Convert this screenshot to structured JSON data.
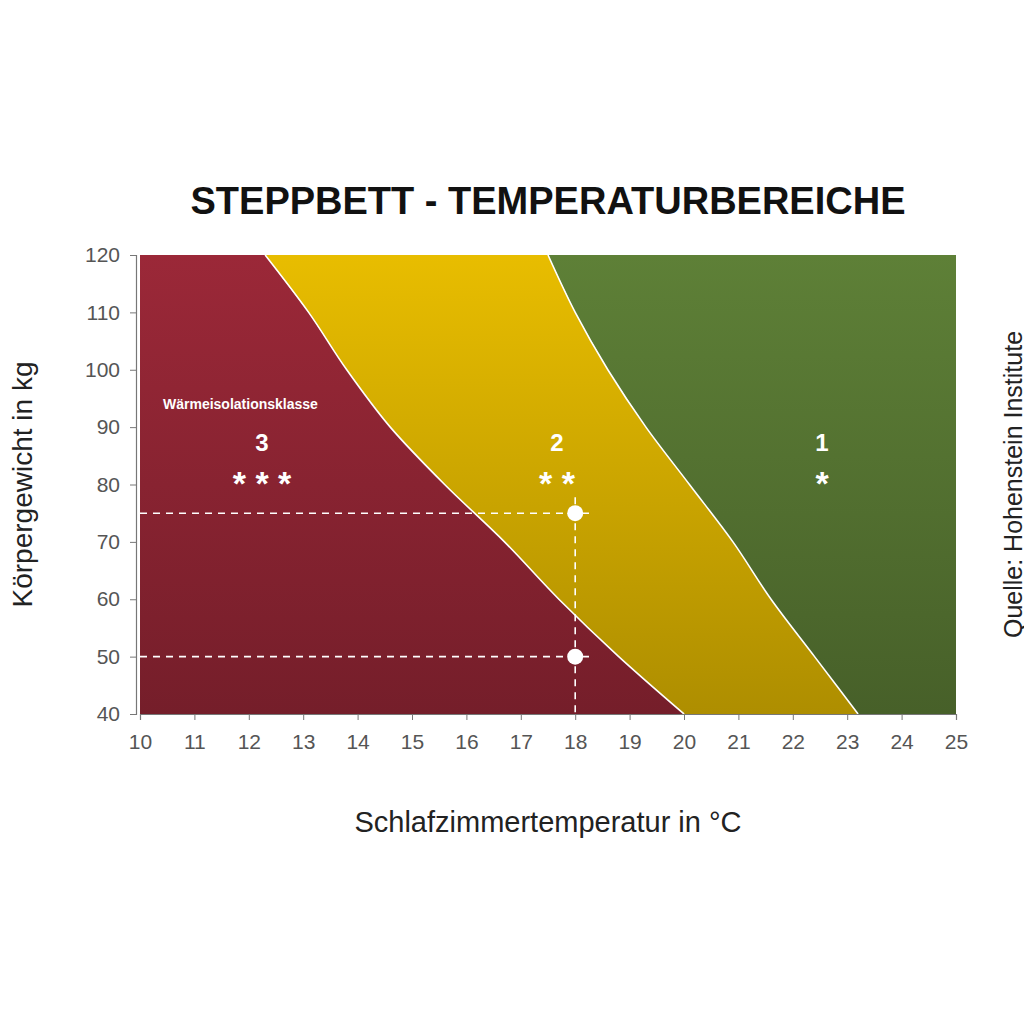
{
  "chart_data": {
    "type": "area",
    "title": "STEPPBETT - TEMPERATURBEREICHE",
    "x_label": "Schlafzimmertemperatur in °C",
    "y_label": "Körpergewicht in kg",
    "source": "Quelle: Hohenstein Institute",
    "annotation": "Wärmeisolationsklasse",
    "xlim": [
      10,
      25
    ],
    "ylim": [
      40,
      120
    ],
    "xticks": [
      10,
      11,
      12,
      13,
      14,
      15,
      16,
      17,
      18,
      19,
      20,
      21,
      22,
      23,
      24,
      25
    ],
    "yticks": [
      40,
      50,
      60,
      70,
      80,
      90,
      100,
      110,
      120
    ],
    "series": [
      {
        "name": "3",
        "label": "* * *",
        "color": "#8e2533"
      },
      {
        "name": "2",
        "label": "* *",
        "color": "#d4ad00"
      },
      {
        "name": "1",
        "label": "*",
        "color": "#567532"
      }
    ],
    "boundaries": [
      {
        "y": [
          120,
          110,
          100,
          90,
          80,
          70,
          60,
          50,
          40
        ],
        "x": [
          12.3,
          13.1,
          13.8,
          14.6,
          15.6,
          16.7,
          17.7,
          18.8,
          20.0
        ]
      },
      {
        "y": [
          120,
          110,
          100,
          90,
          80,
          70,
          60,
          50,
          40
        ],
        "x": [
          17.5,
          18.0,
          18.6,
          19.3,
          20.1,
          20.9,
          21.6,
          22.4,
          23.2
        ]
      }
    ],
    "points": {
      "x": [
        18,
        18
      ],
      "y": [
        75,
        50
      ]
    }
  }
}
